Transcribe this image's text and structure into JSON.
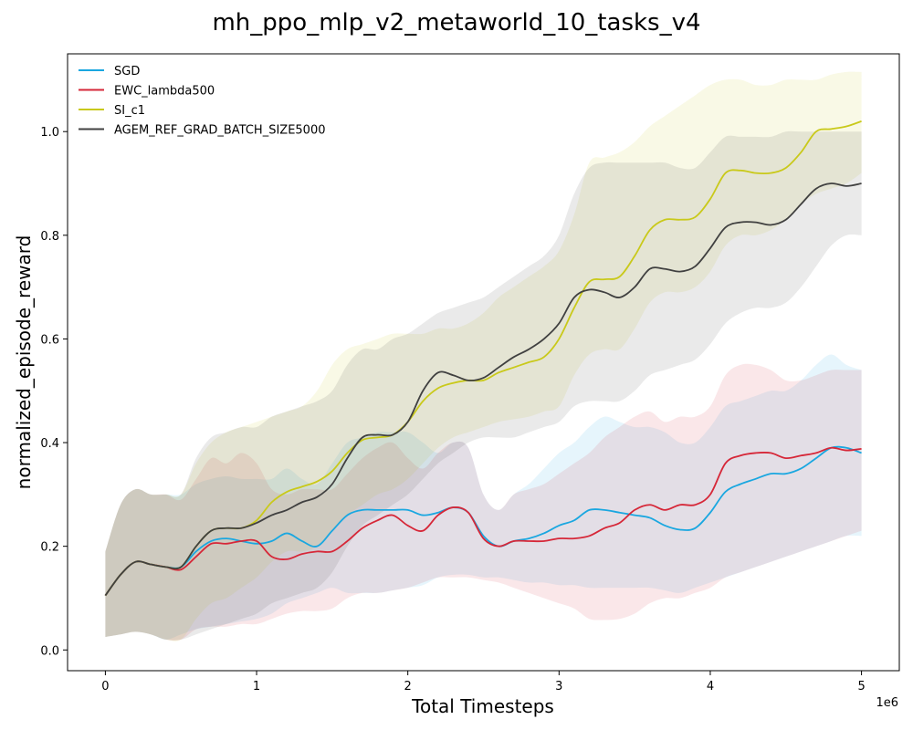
{
  "chart_data": {
    "type": "line",
    "title": "mh_ppo_mlp_v2_metaworld_10_tasks_v4",
    "xlabel": "Total Timesteps",
    "ylabel": "normalized_episode_reward",
    "x_offset_label": "1e6",
    "xlim": [
      -0.25,
      5.25
    ],
    "ylim": [
      -0.04,
      1.15
    ],
    "xticks": [
      0,
      1,
      2,
      3,
      4,
      5
    ],
    "xtick_labels": [
      "0",
      "1",
      "2",
      "3",
      "4",
      "5"
    ],
    "yticks": [
      0.0,
      0.2,
      0.4,
      0.6,
      0.8,
      1.0
    ],
    "ytick_labels": [
      "0.0",
      "0.2",
      "0.4",
      "0.6",
      "0.8",
      "1.0"
    ],
    "grid": false,
    "legend_position": "top-left",
    "x": [
      0,
      0.1,
      0.2,
      0.3,
      0.4,
      0.5,
      0.6,
      0.7,
      0.8,
      0.9,
      1.0,
      1.1,
      1.2,
      1.3,
      1.4,
      1.5,
      1.6,
      1.7,
      1.8,
      1.9,
      2.0,
      2.1,
      2.2,
      2.3,
      2.4,
      2.5,
      2.6,
      2.7,
      2.8,
      2.9,
      3.0,
      3.1,
      3.2,
      3.3,
      3.4,
      3.5,
      3.6,
      3.7,
      3.8,
      3.9,
      4.0,
      4.1,
      4.2,
      4.3,
      4.4,
      4.5,
      4.6,
      4.7,
      4.8,
      4.9,
      5.0
    ],
    "series": [
      {
        "name": "SGD",
        "color": "#1aa7e0",
        "values": [
          0.105,
          0.145,
          0.17,
          0.165,
          0.16,
          0.16,
          0.19,
          0.21,
          0.215,
          0.21,
          0.205,
          0.21,
          0.225,
          0.21,
          0.2,
          0.23,
          0.26,
          0.27,
          0.27,
          0.27,
          0.27,
          0.26,
          0.265,
          0.275,
          0.265,
          0.22,
          0.2,
          0.21,
          0.215,
          0.225,
          0.24,
          0.25,
          0.27,
          0.27,
          0.265,
          0.26,
          0.255,
          0.24,
          0.232,
          0.235,
          0.265,
          0.305,
          0.32,
          0.33,
          0.34,
          0.34,
          0.35,
          0.37,
          0.39,
          0.39,
          0.38
        ],
        "lower": [
          0.025,
          0.03,
          0.035,
          0.03,
          0.02,
          0.03,
          0.04,
          0.045,
          0.05,
          0.055,
          0.06,
          0.07,
          0.09,
          0.1,
          0.11,
          0.12,
          0.11,
          0.11,
          0.11,
          0.115,
          0.12,
          0.125,
          0.14,
          0.145,
          0.145,
          0.14,
          0.14,
          0.135,
          0.13,
          0.13,
          0.125,
          0.125,
          0.12,
          0.12,
          0.12,
          0.12,
          0.12,
          0.115,
          0.11,
          0.12,
          0.13,
          0.14,
          0.15,
          0.16,
          0.17,
          0.18,
          0.19,
          0.2,
          0.21,
          0.22,
          0.22
        ],
        "upper": [
          0.19,
          0.28,
          0.31,
          0.3,
          0.3,
          0.3,
          0.32,
          0.33,
          0.335,
          0.33,
          0.33,
          0.33,
          0.35,
          0.33,
          0.32,
          0.36,
          0.4,
          0.41,
          0.42,
          0.42,
          0.42,
          0.4,
          0.38,
          0.4,
          0.39,
          0.3,
          0.27,
          0.3,
          0.32,
          0.35,
          0.38,
          0.4,
          0.43,
          0.45,
          0.44,
          0.43,
          0.43,
          0.42,
          0.4,
          0.4,
          0.43,
          0.47,
          0.48,
          0.49,
          0.5,
          0.5,
          0.52,
          0.55,
          0.57,
          0.55,
          0.54
        ]
      },
      {
        "name": "EWC_lambda500",
        "color": "#d62738",
        "values": [
          0.105,
          0.145,
          0.17,
          0.165,
          0.16,
          0.155,
          0.18,
          0.205,
          0.205,
          0.21,
          0.21,
          0.18,
          0.175,
          0.185,
          0.19,
          0.19,
          0.21,
          0.235,
          0.25,
          0.26,
          0.24,
          0.23,
          0.26,
          0.275,
          0.265,
          0.215,
          0.2,
          0.21,
          0.21,
          0.21,
          0.215,
          0.215,
          0.22,
          0.235,
          0.245,
          0.27,
          0.28,
          0.27,
          0.28,
          0.28,
          0.3,
          0.36,
          0.375,
          0.38,
          0.38,
          0.37,
          0.375,
          0.38,
          0.39,
          0.385,
          0.388
        ],
        "lower": [
          0.025,
          0.03,
          0.035,
          0.03,
          0.02,
          0.02,
          0.04,
          0.045,
          0.045,
          0.05,
          0.05,
          0.06,
          0.07,
          0.075,
          0.075,
          0.08,
          0.1,
          0.11,
          0.11,
          0.115,
          0.12,
          0.13,
          0.14,
          0.14,
          0.14,
          0.135,
          0.13,
          0.12,
          0.11,
          0.1,
          0.09,
          0.08,
          0.06,
          0.058,
          0.06,
          0.07,
          0.09,
          0.1,
          0.1,
          0.11,
          0.12,
          0.14,
          0.15,
          0.16,
          0.17,
          0.18,
          0.19,
          0.2,
          0.21,
          0.22,
          0.23
        ],
        "upper": [
          0.19,
          0.28,
          0.31,
          0.3,
          0.3,
          0.29,
          0.33,
          0.37,
          0.36,
          0.38,
          0.36,
          0.31,
          0.3,
          0.31,
          0.31,
          0.31,
          0.34,
          0.37,
          0.39,
          0.4,
          0.37,
          0.35,
          0.38,
          0.4,
          0.39,
          0.3,
          0.27,
          0.3,
          0.31,
          0.32,
          0.34,
          0.36,
          0.38,
          0.41,
          0.43,
          0.45,
          0.46,
          0.44,
          0.45,
          0.45,
          0.47,
          0.53,
          0.55,
          0.55,
          0.54,
          0.52,
          0.52,
          0.53,
          0.54,
          0.54,
          0.54
        ]
      },
      {
        "name": "SI_c1",
        "color": "#c9c91a",
        "values": [
          0.105,
          0.145,
          0.17,
          0.165,
          0.16,
          0.16,
          0.2,
          0.23,
          0.235,
          0.235,
          0.25,
          0.285,
          0.305,
          0.315,
          0.325,
          0.345,
          0.38,
          0.405,
          0.41,
          0.415,
          0.44,
          0.48,
          0.505,
          0.515,
          0.52,
          0.52,
          0.535,
          0.545,
          0.555,
          0.565,
          0.6,
          0.66,
          0.71,
          0.715,
          0.72,
          0.76,
          0.81,
          0.83,
          0.83,
          0.835,
          0.87,
          0.92,
          0.925,
          0.92,
          0.92,
          0.93,
          0.96,
          1.0,
          1.005,
          1.01,
          1.02
        ],
        "lower": [
          0.025,
          0.03,
          0.035,
          0.03,
          0.02,
          0.02,
          0.06,
          0.09,
          0.1,
          0.12,
          0.14,
          0.17,
          0.19,
          0.19,
          0.2,
          0.23,
          0.26,
          0.28,
          0.3,
          0.31,
          0.33,
          0.36,
          0.39,
          0.41,
          0.42,
          0.43,
          0.44,
          0.445,
          0.45,
          0.46,
          0.47,
          0.53,
          0.57,
          0.58,
          0.58,
          0.62,
          0.67,
          0.69,
          0.69,
          0.7,
          0.73,
          0.78,
          0.8,
          0.8,
          0.81,
          0.83,
          0.86,
          0.88,
          0.89,
          0.9,
          0.92
        ],
        "upper": [
          0.19,
          0.28,
          0.31,
          0.3,
          0.3,
          0.3,
          0.36,
          0.4,
          0.42,
          0.43,
          0.44,
          0.45,
          0.46,
          0.47,
          0.5,
          0.55,
          0.58,
          0.59,
          0.6,
          0.61,
          0.61,
          0.61,
          0.62,
          0.62,
          0.63,
          0.65,
          0.68,
          0.7,
          0.72,
          0.74,
          0.77,
          0.84,
          0.94,
          0.95,
          0.96,
          0.98,
          1.01,
          1.03,
          1.05,
          1.07,
          1.09,
          1.1,
          1.1,
          1.09,
          1.09,
          1.1,
          1.1,
          1.1,
          1.11,
          1.115,
          1.115
        ]
      },
      {
        "name": "AGEM_REF_GRAD_BATCH_SIZE5000",
        "color": "#404040",
        "values": [
          0.105,
          0.145,
          0.17,
          0.165,
          0.16,
          0.16,
          0.2,
          0.23,
          0.235,
          0.235,
          0.245,
          0.26,
          0.27,
          0.285,
          0.295,
          0.32,
          0.37,
          0.41,
          0.415,
          0.415,
          0.44,
          0.5,
          0.535,
          0.53,
          0.52,
          0.525,
          0.545,
          0.565,
          0.58,
          0.6,
          0.63,
          0.68,
          0.695,
          0.69,
          0.68,
          0.7,
          0.735,
          0.735,
          0.73,
          0.74,
          0.775,
          0.815,
          0.825,
          0.825,
          0.82,
          0.83,
          0.86,
          0.89,
          0.9,
          0.895,
          0.9
        ],
        "lower": [
          0.025,
          0.03,
          0.035,
          0.03,
          0.02,
          0.02,
          0.03,
          0.04,
          0.05,
          0.06,
          0.07,
          0.09,
          0.1,
          0.11,
          0.12,
          0.15,
          0.2,
          0.24,
          0.26,
          0.28,
          0.3,
          0.33,
          0.36,
          0.38,
          0.4,
          0.41,
          0.41,
          0.41,
          0.42,
          0.43,
          0.44,
          0.47,
          0.48,
          0.48,
          0.48,
          0.5,
          0.53,
          0.54,
          0.55,
          0.56,
          0.59,
          0.63,
          0.65,
          0.66,
          0.66,
          0.67,
          0.7,
          0.74,
          0.78,
          0.8,
          0.8
        ],
        "upper": [
          0.19,
          0.28,
          0.31,
          0.3,
          0.3,
          0.3,
          0.37,
          0.41,
          0.42,
          0.43,
          0.43,
          0.45,
          0.46,
          0.47,
          0.48,
          0.5,
          0.55,
          0.58,
          0.58,
          0.6,
          0.61,
          0.63,
          0.65,
          0.66,
          0.67,
          0.68,
          0.7,
          0.72,
          0.74,
          0.76,
          0.8,
          0.88,
          0.93,
          0.94,
          0.94,
          0.94,
          0.94,
          0.94,
          0.93,
          0.93,
          0.96,
          0.99,
          0.99,
          0.99,
          0.99,
          1.0,
          1.0,
          1.0,
          1.0,
          1.0,
          1.0
        ]
      }
    ]
  }
}
